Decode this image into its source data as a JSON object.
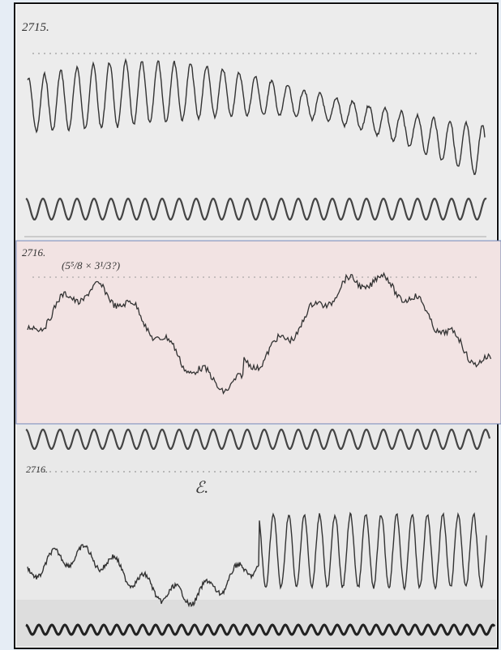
{
  "panels": [
    {
      "label": "2715."
    },
    {
      "label": "2716.",
      "note": "(5⁵/8 × 3¹/3?)"
    },
    {
      "label": "2716.",
      "note": "ℰ."
    }
  ]
}
